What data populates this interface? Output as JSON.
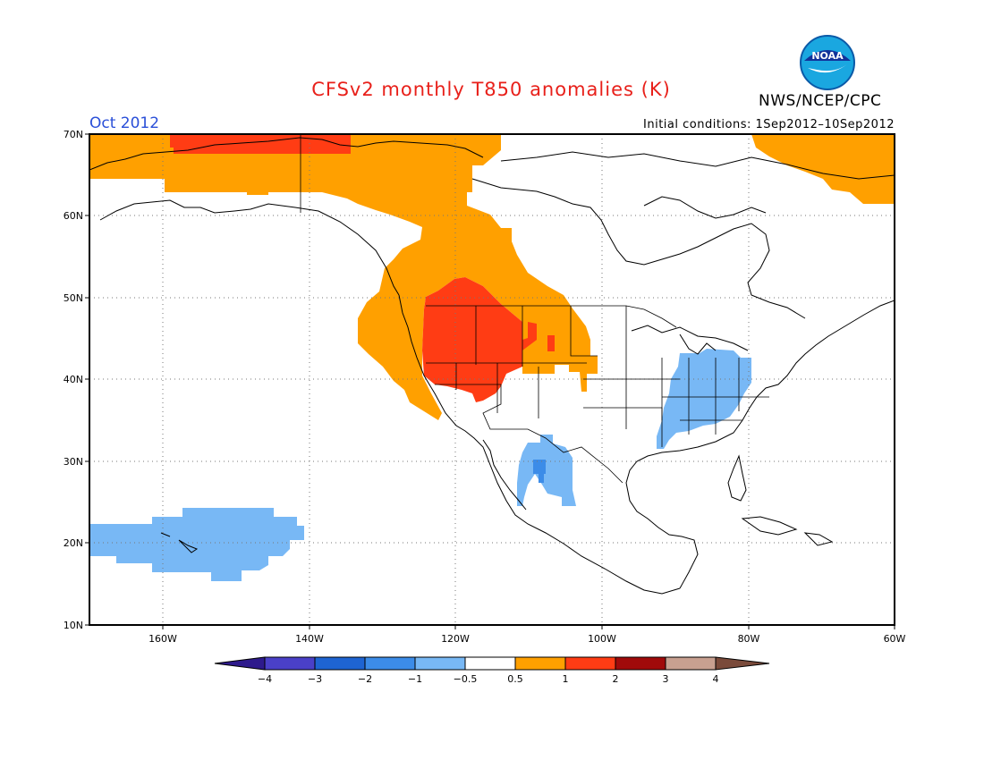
{
  "title": "CFSv2 monthly T850 anomalies (K)",
  "agency": "NWS/NCEP/CPC",
  "logo_text": "NOAA",
  "period": "Oct 2012",
  "initial_conditions": "Initial conditions: 1Sep2012–10Sep2012",
  "lat_labels": [
    "70N",
    "60N",
    "50N",
    "40N",
    "30N",
    "20N",
    "10N"
  ],
  "lon_labels": [
    "160W",
    "140W",
    "120W",
    "100W",
    "80W",
    "60W"
  ],
  "colorbar": {
    "labels": [
      "−4",
      "−3",
      "−2",
      "−1",
      "−0.5",
      "0.5",
      "1",
      "2",
      "3",
      "4"
    ],
    "colors": [
      "#2e1a8c",
      "#4a40c8",
      "#1e64d2",
      "#3c8ce8",
      "#78b8f5",
      "#ffffff",
      "#ffa000",
      "#ff3c14",
      "#a00a0a",
      "#c8a090",
      "#7a4a3a"
    ]
  },
  "colors": {
    "title": "#e8201a",
    "period": "#2a4fd8",
    "positive_weak": "#ffa000",
    "positive_moderate": "#ff3c14",
    "negative_weak": "#78b8f5",
    "negative_moderate": "#3c8ce8"
  }
}
